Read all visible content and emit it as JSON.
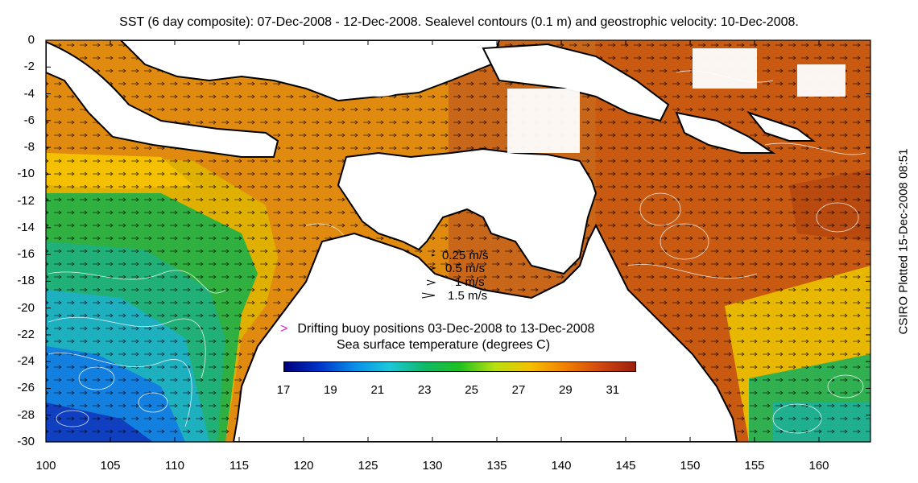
{
  "title": "SST (6 day composite): 07-Dec-2008 - 12-Dec-2008. Sealevel contours (0.1 m) and geostrophic velocity: 10-Dec-2008.",
  "side_note": "CSIRO Plotted 15-Dec-2008 08:51",
  "y_axis": {
    "ticks": [
      "0",
      "-2",
      "-4",
      "-6",
      "-8",
      "-10",
      "-12",
      "-14",
      "-16",
      "-18",
      "-20",
      "-22",
      "-24",
      "-26",
      "-28",
      "-30"
    ]
  },
  "x_axis": {
    "ticks": [
      "100",
      "105",
      "110",
      "115",
      "120",
      "125",
      "130",
      "135",
      "140",
      "145",
      "150",
      "155",
      "160"
    ]
  },
  "velocity_legend": [
    {
      "label": "0.25 m/s",
      "speed": 0.25
    },
    {
      "label": "0.5 m/s",
      "speed": 0.5
    },
    {
      "label": "1 m/s",
      "speed": 1
    },
    {
      "label": "1.5 m/s",
      "speed": 1.5
    }
  ],
  "buoy_legend": {
    "marker": ">",
    "label": "Drifting buoy positions 03-Dec-2008 to 13-Dec-2008",
    "color": "#e020c0"
  },
  "colorbar": {
    "label": "Sea surface temperature (degrees C)",
    "ticks": [
      "17",
      "19",
      "21",
      "23",
      "25",
      "27",
      "29",
      "31"
    ],
    "min": 17,
    "max": 32,
    "colors": [
      "#00007a",
      "#0033c8",
      "#0a8ee8",
      "#1cc8d8",
      "#10b868",
      "#20c020",
      "#b8e010",
      "#f4c000",
      "#f08000",
      "#d04810",
      "#9a2010"
    ]
  },
  "map": {
    "lon_range": [
      100,
      164
    ],
    "lat_range": [
      -30,
      0
    ],
    "land_color": "#ffffff",
    "coast_color": "#000000",
    "contour_color": "#ffffff"
  }
}
